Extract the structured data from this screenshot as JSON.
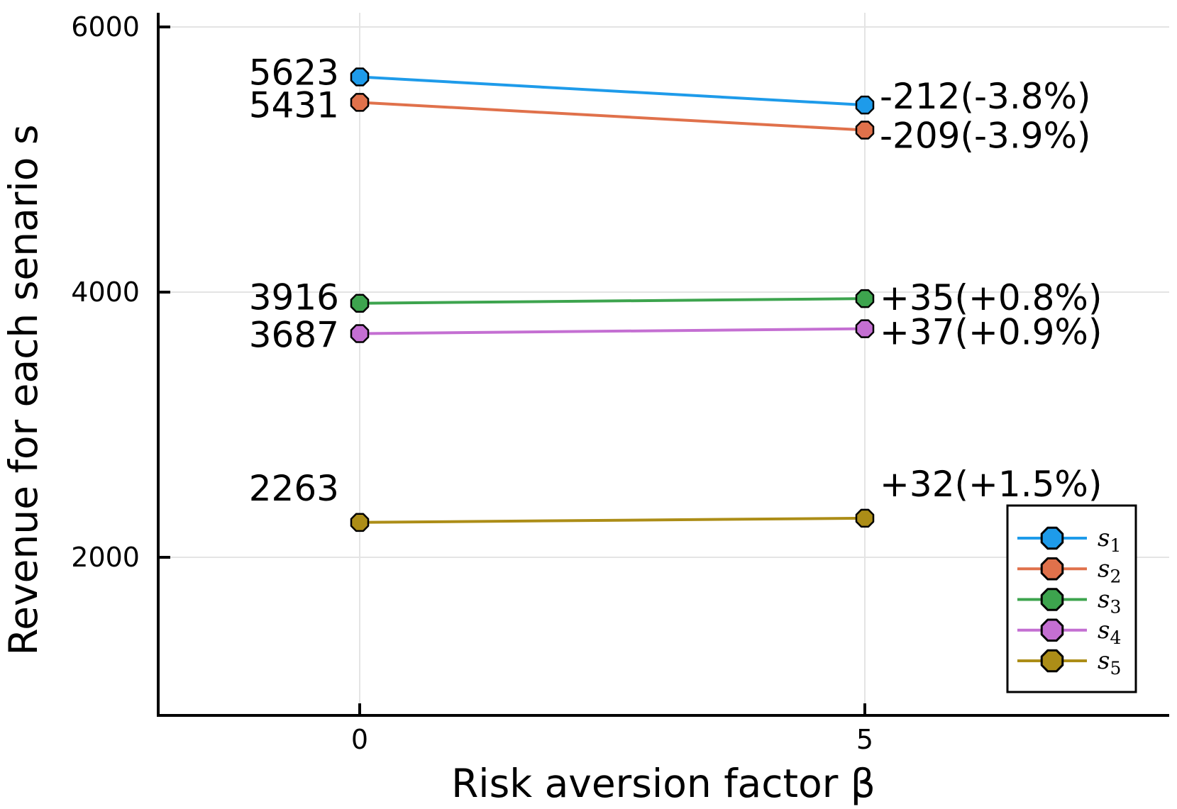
{
  "chart_data": {
    "type": "line",
    "title": "",
    "xlabel": "Risk aversion factor β",
    "ylabel": "Revenue for each senario s",
    "x": [
      0,
      5
    ],
    "xtick_labels": [
      "0",
      "5"
    ],
    "xtick_values": [
      0,
      5
    ],
    "ytick_labels": [
      "2000",
      "4000",
      "6000"
    ],
    "ytick_values": [
      2000,
      4000,
      6000
    ],
    "xlim": [
      -2,
      8
    ],
    "ylim": [
      807,
      6107
    ],
    "grid": true,
    "marker_shape": "octagon",
    "axis_color": "#000000",
    "grid_color": "#e4e4e4",
    "text_color": "#000000",
    "background": "#ffffff",
    "legend_position": "bottom-right",
    "series": [
      {
        "name": "s1",
        "legend_base": "s",
        "legend_sub": "1",
        "color": "#1E9BEA",
        "values": [
          5623,
          5411
        ],
        "start_label": "5623",
        "end_label": "-212(-3.8%)",
        "start_label_dy": -6,
        "end_label_dy": -12
      },
      {
        "name": "s2",
        "legend_base": "s",
        "legend_sub": "2",
        "color": "#E0714B",
        "values": [
          5431,
          5222
        ],
        "start_label": "5431",
        "end_label": "-209(-3.9%)",
        "start_label_dy": 4,
        "end_label_dy": 8
      },
      {
        "name": "s3",
        "legend_base": "s",
        "legend_sub": "3",
        "color": "#3DA44E",
        "values": [
          3916,
          3951
        ],
        "start_label": "3916",
        "end_label": "+35(+0.8%)",
        "start_label_dy": -8,
        "end_label_dy": -1
      },
      {
        "name": "s4",
        "legend_base": "s",
        "legend_sub": "4",
        "color": "#C46FD2",
        "values": [
          3687,
          3724
        ],
        "start_label": "3687",
        "end_label": "+37(+0.9%)",
        "start_label_dy": 2,
        "end_label_dy": 5
      },
      {
        "name": "s5",
        "legend_base": "s",
        "legend_sub": "5",
        "color": "#AC8D17",
        "values": [
          2263,
          2295
        ],
        "start_label": "2263",
        "end_label": "+32(+1.5%)",
        "start_label_dy": -48,
        "end_label_dy": -48
      }
    ]
  }
}
